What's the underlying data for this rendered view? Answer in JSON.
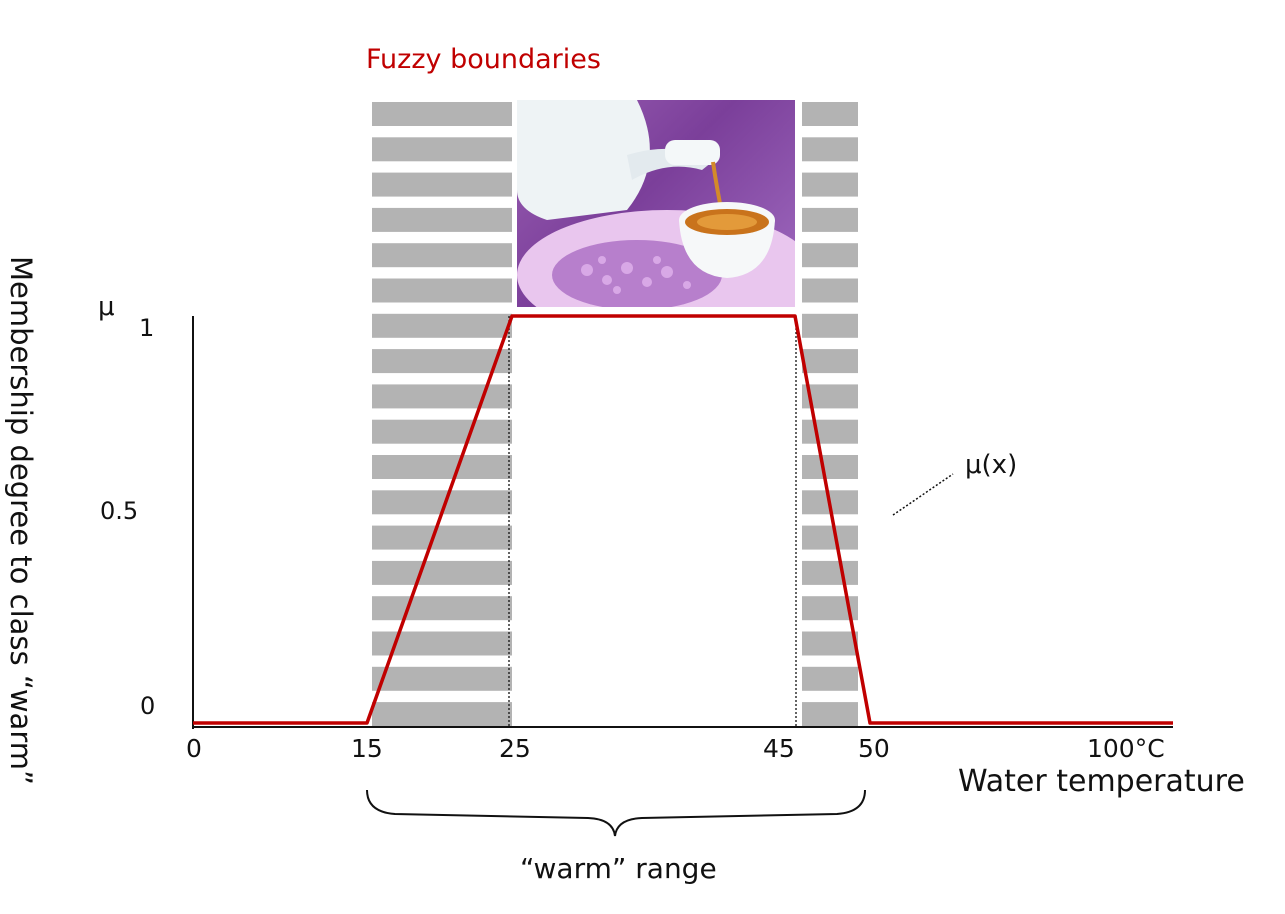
{
  "title": "Fuzzy boundaries",
  "y_axis": {
    "symbol": "μ",
    "title": "Membership degree to class “warm”",
    "ticks": [
      "1",
      "0.5",
      "0"
    ]
  },
  "x_axis": {
    "title": "Water temperature",
    "ticks": [
      "0",
      "15",
      "25",
      "45",
      "50",
      "100°C"
    ]
  },
  "curve_label": "μ(x)",
  "range_label": "“warm” range",
  "colors": {
    "curve": "#c00000",
    "title": "#c00000",
    "band": "#b3b3b3"
  },
  "image": {
    "depicts": "teapot pouring tea into a cup"
  },
  "chart_data": {
    "type": "line",
    "x": [
      0,
      15,
      25,
      45,
      50,
      100
    ],
    "y": [
      0,
      0,
      1,
      1,
      0,
      0
    ],
    "xlabel": "Water temperature",
    "ylabel": "Membership degree to class “warm”",
    "ylim": [
      0,
      1
    ]
  }
}
